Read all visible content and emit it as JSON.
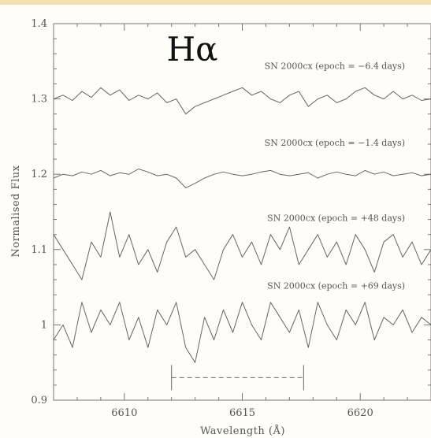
{
  "chart_data": {
    "type": "line",
    "title": "Hα",
    "xlabel": "Wavelength (Å)",
    "ylabel": "Normalised Flux",
    "xlim": [
      6607,
      6623
    ],
    "ylim": [
      0.9,
      1.4
    ],
    "xticks": [
      {
        "value": 6610,
        "label": "6610"
      },
      {
        "value": 6615,
        "label": "6615"
      },
      {
        "value": 6620,
        "label": "6620"
      }
    ],
    "yticks": [
      {
        "value": 0.9,
        "label": "0.9"
      },
      {
        "value": 1.0,
        "label": "1"
      },
      {
        "value": 1.1,
        "label": "1.1"
      },
      {
        "value": 1.2,
        "label": "1.2"
      },
      {
        "value": 1.3,
        "label": "1.3"
      },
      {
        "value": 1.4,
        "label": "1.4"
      }
    ],
    "grid": false,
    "color": "#666666",
    "series": [
      {
        "name": "SN 2000cx (epoch = −6.4 days)",
        "label_x": 6621.9,
        "label_y": 1.34,
        "x": [
          6607.0,
          6607.4,
          6607.8,
          6608.2,
          6608.6,
          6609.0,
          6609.4,
          6609.8,
          6610.2,
          6610.6,
          6611.0,
          6611.4,
          6611.8,
          6612.2,
          6612.6,
          6613.0,
          6613.4,
          6613.8,
          6614.2,
          6614.6,
          6615.0,
          6615.4,
          6615.8,
          6616.2,
          6616.6,
          6617.0,
          6617.4,
          6617.8,
          6618.2,
          6618.6,
          6619.0,
          6619.4,
          6619.8,
          6620.2,
          6620.6,
          6621.0,
          6621.4,
          6621.8,
          6622.2,
          6622.6,
          6623.0
        ],
        "y": [
          1.3,
          1.305,
          1.298,
          1.31,
          1.302,
          1.315,
          1.305,
          1.312,
          1.298,
          1.305,
          1.3,
          1.308,
          1.295,
          1.3,
          1.28,
          1.29,
          1.295,
          1.3,
          1.305,
          1.31,
          1.315,
          1.305,
          1.31,
          1.3,
          1.295,
          1.305,
          1.31,
          1.29,
          1.3,
          1.305,
          1.295,
          1.3,
          1.31,
          1.315,
          1.305,
          1.3,
          1.31,
          1.3,
          1.305,
          1.298,
          1.3
        ]
      },
      {
        "name": "SN 2000cx (epoch = −1.4 days)",
        "label_x": 6621.9,
        "label_y": 1.238,
        "x": [
          6607.0,
          6607.4,
          6607.8,
          6608.2,
          6608.6,
          6609.0,
          6609.4,
          6609.8,
          6610.2,
          6610.6,
          6611.0,
          6611.4,
          6611.8,
          6612.2,
          6612.6,
          6613.0,
          6613.4,
          6613.8,
          6614.2,
          6614.6,
          6615.0,
          6615.4,
          6615.8,
          6616.2,
          6616.6,
          6617.0,
          6617.4,
          6617.8,
          6618.2,
          6618.6,
          6619.0,
          6619.4,
          6619.8,
          6620.2,
          6620.6,
          6621.0,
          6621.4,
          6621.8,
          6622.2,
          6622.6,
          6623.0
        ],
        "y": [
          1.195,
          1.2,
          1.198,
          1.203,
          1.2,
          1.205,
          1.198,
          1.202,
          1.2,
          1.207,
          1.203,
          1.198,
          1.2,
          1.195,
          1.182,
          1.188,
          1.195,
          1.2,
          1.203,
          1.2,
          1.198,
          1.2,
          1.203,
          1.205,
          1.2,
          1.198,
          1.2,
          1.202,
          1.195,
          1.2,
          1.203,
          1.2,
          1.198,
          1.205,
          1.2,
          1.203,
          1.198,
          1.2,
          1.202,
          1.198,
          1.2
        ]
      },
      {
        "name": "SN 2000cx (epoch = +48 days)",
        "label_x": 6621.9,
        "label_y": 1.138,
        "x": [
          6607.0,
          6607.4,
          6607.8,
          6608.2,
          6608.6,
          6609.0,
          6609.4,
          6609.8,
          6610.2,
          6610.6,
          6611.0,
          6611.4,
          6611.8,
          6612.2,
          6612.6,
          6613.0,
          6613.4,
          6613.8,
          6614.2,
          6614.6,
          6615.0,
          6615.4,
          6615.8,
          6616.2,
          6616.6,
          6617.0,
          6617.4,
          6617.8,
          6618.2,
          6618.6,
          6619.0,
          6619.4,
          6619.8,
          6620.2,
          6620.6,
          6621.0,
          6621.4,
          6621.8,
          6622.2,
          6622.6,
          6623.0
        ],
        "y": [
          1.12,
          1.1,
          1.08,
          1.06,
          1.11,
          1.09,
          1.15,
          1.09,
          1.12,
          1.08,
          1.1,
          1.07,
          1.11,
          1.13,
          1.09,
          1.1,
          1.08,
          1.06,
          1.1,
          1.12,
          1.09,
          1.11,
          1.08,
          1.12,
          1.1,
          1.13,
          1.08,
          1.1,
          1.12,
          1.09,
          1.11,
          1.08,
          1.12,
          1.1,
          1.07,
          1.11,
          1.12,
          1.09,
          1.11,
          1.08,
          1.1
        ]
      },
      {
        "name": "SN 2000cx (epoch = +69 days)",
        "label_x": 6621.9,
        "label_y": 1.048,
        "x": [
          6607.0,
          6607.4,
          6607.8,
          6608.2,
          6608.6,
          6609.0,
          6609.4,
          6609.8,
          6610.2,
          6610.6,
          6611.0,
          6611.4,
          6611.8,
          6612.2,
          6612.6,
          6613.0,
          6613.4,
          6613.8,
          6614.2,
          6614.6,
          6615.0,
          6615.4,
          6615.8,
          6616.2,
          6616.6,
          6617.0,
          6617.4,
          6617.8,
          6618.2,
          6618.6,
          6619.0,
          6619.4,
          6619.8,
          6620.2,
          6620.6,
          6621.0,
          6621.4,
          6621.8,
          6622.2,
          6622.6,
          6623.0
        ],
        "y": [
          0.98,
          1.0,
          0.97,
          1.03,
          0.99,
          1.02,
          1.0,
          1.03,
          0.98,
          1.01,
          0.97,
          1.02,
          1.0,
          1.03,
          0.97,
          0.95,
          1.01,
          0.98,
          1.02,
          0.99,
          1.03,
          1.0,
          0.98,
          1.03,
          1.01,
          0.99,
          1.02,
          0.97,
          1.03,
          1.0,
          0.98,
          1.02,
          1.0,
          1.03,
          0.98,
          1.01,
          1.0,
          1.02,
          0.99,
          1.01,
          1.0
        ]
      }
    ],
    "annotations": [
      {
        "type": "dashed-interval",
        "x_start": 6612.0,
        "x_end": 6617.6,
        "y": 0.93
      }
    ]
  }
}
